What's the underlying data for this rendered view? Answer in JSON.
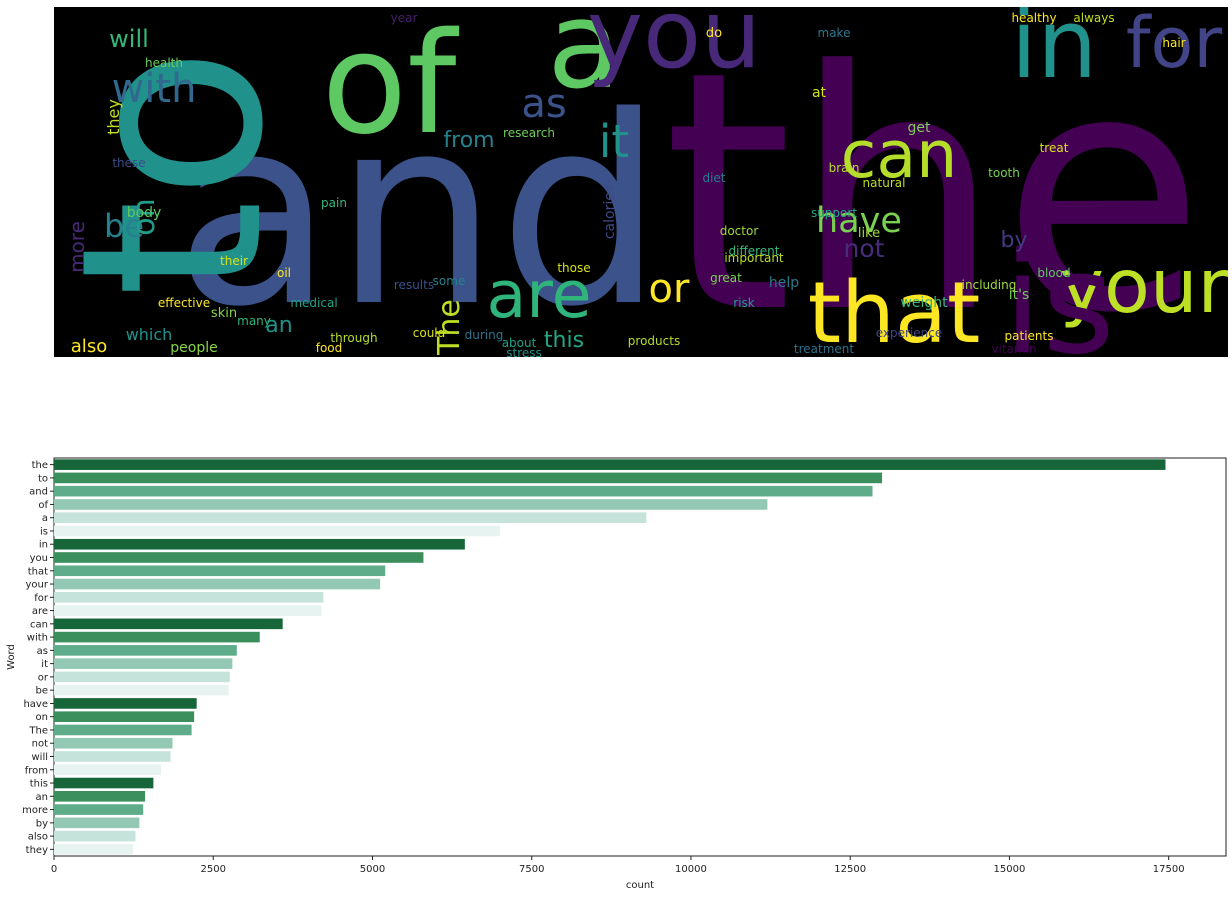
{
  "chart_data": [
    {
      "type": "wordcloud",
      "colormap": "viridis",
      "background": "#000000",
      "words": [
        {
          "text": "the",
          "size": 1.0,
          "color": "#440154",
          "rotate": 0
        },
        {
          "text": "and",
          "size": 0.78,
          "color": "#3b528b",
          "rotate": 0
        },
        {
          "text": "to",
          "size": 0.74,
          "color": "#21918c",
          "rotate": -90
        },
        {
          "text": "of",
          "size": 0.6,
          "color": "#5ec962",
          "rotate": 0
        },
        {
          "text": "a",
          "size": 0.55,
          "color": "#5ec962",
          "rotate": 0
        },
        {
          "text": "you",
          "size": 0.45,
          "color": "#482878",
          "rotate": 0
        },
        {
          "text": "in",
          "size": 0.44,
          "color": "#21918c",
          "rotate": 0
        },
        {
          "text": "for",
          "size": 0.34,
          "color": "#414487",
          "rotate": 0
        },
        {
          "text": "your",
          "size": 0.33,
          "color": "#bddf26",
          "rotate": 0
        },
        {
          "text": "that",
          "size": 0.38,
          "color": "#fde725",
          "rotate": 0
        },
        {
          "text": "is",
          "size": 0.55,
          "color": "#440154",
          "rotate": 0
        },
        {
          "text": "are",
          "size": 0.3,
          "color": "#2fb47c",
          "rotate": 0
        },
        {
          "text": "can",
          "size": 0.28,
          "color": "#b5de2b",
          "rotate": 0
        },
        {
          "text": "with",
          "size": 0.2,
          "color": "#31688e",
          "rotate": 0
        },
        {
          "text": "as",
          "size": 0.22,
          "color": "#3b528b",
          "rotate": 0
        },
        {
          "text": "it",
          "size": 0.22,
          "color": "#21918c",
          "rotate": 0
        },
        {
          "text": "or",
          "size": 0.18,
          "color": "#fde725",
          "rotate": 0
        },
        {
          "text": "be",
          "size": 0.15,
          "color": "#26828e",
          "rotate": 0
        },
        {
          "text": "have",
          "size": 0.16,
          "color": "#7ad151",
          "rotate": 0
        },
        {
          "text": "on",
          "size": 0.14,
          "color": "#1f9e89",
          "rotate": -90
        },
        {
          "text": "The",
          "size": 0.12,
          "color": "#bddf26",
          "rotate": -90
        },
        {
          "text": "not",
          "size": 0.12,
          "color": "#472d7b",
          "rotate": 0
        },
        {
          "text": "will",
          "size": 0.11,
          "color": "#35b779",
          "rotate": 0
        },
        {
          "text": "from",
          "size": 0.1,
          "color": "#26828e",
          "rotate": 0
        },
        {
          "text": "this",
          "size": 0.1,
          "color": "#22a884",
          "rotate": 0
        },
        {
          "text": "an",
          "size": 0.09,
          "color": "#21918c",
          "rotate": 0
        },
        {
          "text": "more",
          "size": 0.08,
          "color": "#482878",
          "rotate": -90
        },
        {
          "text": "by",
          "size": 0.09,
          "color": "#443983",
          "rotate": 0
        },
        {
          "text": "also",
          "size": 0.07,
          "color": "#fde725",
          "rotate": 0
        },
        {
          "text": "they",
          "size": 0.06,
          "color": "#c2df23",
          "rotate": -90
        },
        {
          "text": "it's",
          "size": 0.06,
          "color": "#6ece58",
          "rotate": 0
        },
        {
          "text": "which",
          "size": 0.06,
          "color": "#21918c",
          "rotate": 0
        },
        {
          "text": "people",
          "size": 0.05,
          "color": "#86d549",
          "rotate": 0
        },
        {
          "text": "help",
          "size": 0.05,
          "color": "#2a788e",
          "rotate": 0
        },
        {
          "text": "get",
          "size": 0.05,
          "color": "#7ad151",
          "rotate": 0
        },
        {
          "text": "like",
          "size": 0.05,
          "color": "#a0da39",
          "rotate": 0
        },
        {
          "text": "do",
          "size": 0.05,
          "color": "#fde725",
          "rotate": 0
        },
        {
          "text": "at",
          "size": 0.05,
          "color": "#d2e21b",
          "rotate": 0
        },
        {
          "text": "skin",
          "size": 0.04,
          "color": "#86d549",
          "rotate": 0
        },
        {
          "text": "weight",
          "size": 0.04,
          "color": "#35b779",
          "rotate": 0
        },
        {
          "text": "body",
          "size": 0.04,
          "color": "#5ec962",
          "rotate": 0
        },
        {
          "text": "some",
          "size": 0.04,
          "color": "#26828e",
          "rotate": 0
        },
        {
          "text": "health",
          "size": 0.04,
          "color": "#6ece58",
          "rotate": 0
        },
        {
          "text": "these",
          "size": 0.04,
          "color": "#3e4a89",
          "rotate": 0
        },
        {
          "text": "important",
          "size": 0.035,
          "color": "#bddf26",
          "rotate": 0
        },
        {
          "text": "treatment",
          "size": 0.035,
          "color": "#2c728e",
          "rotate": 0
        },
        {
          "text": "patients",
          "size": 0.035,
          "color": "#fde725",
          "rotate": 0
        },
        {
          "text": "products",
          "size": 0.035,
          "color": "#b5de2b",
          "rotate": 0
        },
        {
          "text": "doctor",
          "size": 0.035,
          "color": "#a0da39",
          "rotate": 0
        },
        {
          "text": "many",
          "size": 0.035,
          "color": "#2fb47c",
          "rotate": 0
        },
        {
          "text": "their",
          "size": 0.035,
          "color": "#d8e219",
          "rotate": 0
        },
        {
          "text": "effective",
          "size": 0.03,
          "color": "#fde725",
          "rotate": 0
        },
        {
          "text": "medical",
          "size": 0.03,
          "color": "#1fa187",
          "rotate": 0
        },
        {
          "text": "stress",
          "size": 0.03,
          "color": "#21918c",
          "rotate": 0
        },
        {
          "text": "vitamin",
          "size": 0.03,
          "color": "#440154",
          "rotate": 0
        },
        {
          "text": "blood",
          "size": 0.03,
          "color": "#5ec962",
          "rotate": 0
        },
        {
          "text": "tooth",
          "size": 0.03,
          "color": "#7ad151",
          "rotate": 0
        },
        {
          "text": "results",
          "size": 0.03,
          "color": "#3b528b",
          "rotate": 0
        },
        {
          "text": "diet",
          "size": 0.03,
          "color": "#287c8e",
          "rotate": 0
        },
        {
          "text": "research",
          "size": 0.03,
          "color": "#6ece58",
          "rotate": 0
        },
        {
          "text": "risk",
          "size": 0.03,
          "color": "#1f9e89",
          "rotate": 0
        },
        {
          "text": "treat",
          "size": 0.03,
          "color": "#d8e219",
          "rotate": 0
        },
        {
          "text": "experience",
          "size": 0.03,
          "color": "#414487",
          "rotate": 0
        },
        {
          "text": "including",
          "size": 0.03,
          "color": "#a0da39",
          "rotate": 0
        },
        {
          "text": "great",
          "size": 0.03,
          "color": "#7ad151",
          "rotate": 0
        },
        {
          "text": "different",
          "size": 0.03,
          "color": "#37b878",
          "rotate": 0
        },
        {
          "text": "brain",
          "size": 0.03,
          "color": "#b5de2b",
          "rotate": 0
        },
        {
          "text": "support",
          "size": 0.03,
          "color": "#22a884",
          "rotate": 0
        },
        {
          "text": "natural",
          "size": 0.03,
          "color": "#bddf26",
          "rotate": 0
        },
        {
          "text": "healthy",
          "size": 0.03,
          "color": "#fde725",
          "rotate": 0
        },
        {
          "text": "always",
          "size": 0.03,
          "color": "#c2df23",
          "rotate": 0
        },
        {
          "text": "hair",
          "size": 0.03,
          "color": "#fde725",
          "rotate": 0
        },
        {
          "text": "make",
          "size": 0.03,
          "color": "#2a788e",
          "rotate": 0
        },
        {
          "text": "year",
          "size": 0.03,
          "color": "#481f70",
          "rotate": 0
        },
        {
          "text": "pain",
          "size": 0.03,
          "color": "#35b779",
          "rotate": 0
        },
        {
          "text": "oil",
          "size": 0.03,
          "color": "#fde725",
          "rotate": 0
        },
        {
          "text": "food",
          "size": 0.03,
          "color": "#fde725",
          "rotate": 0
        },
        {
          "text": "through",
          "size": 0.03,
          "color": "#b5de2b",
          "rotate": 0
        },
        {
          "text": "could",
          "size": 0.03,
          "color": "#d8e219",
          "rotate": 0
        },
        {
          "text": "during",
          "size": 0.03,
          "color": "#2c728e",
          "rotate": 0
        },
        {
          "text": "about",
          "size": 0.03,
          "color": "#1fa187",
          "rotate": 0
        },
        {
          "text": "those",
          "size": 0.03,
          "color": "#d8e219",
          "rotate": 0
        },
        {
          "text": "calories",
          "size": 0.03,
          "color": "#3e4a89",
          "rotate": -90
        }
      ]
    },
    {
      "type": "bar",
      "orientation": "horizontal",
      "ylabel": "Word",
      "xlabel": "count",
      "xlim": [
        0,
        18400
      ],
      "xticks": [
        0,
        2500,
        5000,
        7500,
        10000,
        12500,
        15000,
        17500
      ],
      "grid": false,
      "palette": [
        "#16663a",
        "#3a8f5c",
        "#5eac8a",
        "#93c9b4",
        "#c5e3da",
        "#e6f3f1"
      ],
      "categories": [
        "the",
        "to",
        "and",
        "of",
        "a",
        "is",
        "in",
        "you",
        "that",
        "your",
        "for",
        "are",
        "can",
        "with",
        "as",
        "it",
        "or",
        "be",
        "have",
        "on",
        "The",
        "not",
        "will",
        "from",
        "this",
        "an",
        "more",
        "by",
        "also",
        "they"
      ],
      "values": [
        17450,
        13000,
        12850,
        11200,
        9300,
        7000,
        6450,
        5800,
        5200,
        5120,
        4230,
        4200,
        3590,
        3230,
        2870,
        2800,
        2760,
        2740,
        2240,
        2200,
        2160,
        1860,
        1830,
        1680,
        1560,
        1430,
        1400,
        1340,
        1280,
        1240
      ]
    }
  ]
}
